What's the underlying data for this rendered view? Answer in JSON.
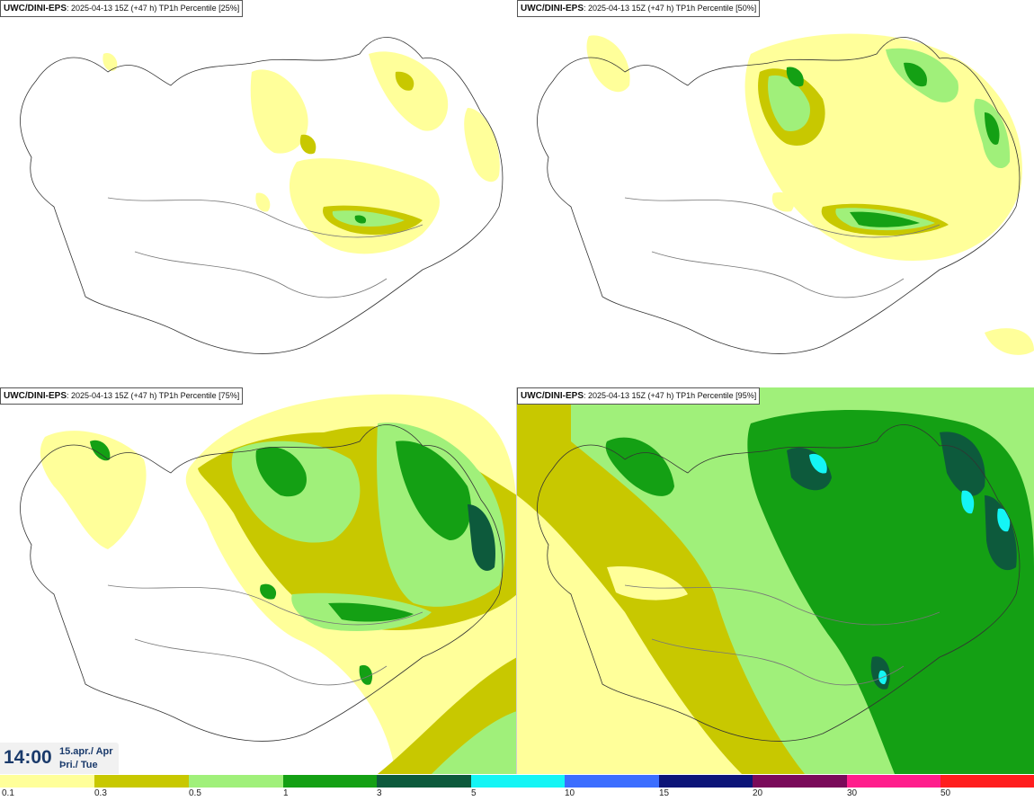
{
  "panels": [
    {
      "model": "UWC/DINI-EPS",
      "info": ": 2025-04-13 15Z (+47 h) TP1h Percentile [25%]"
    },
    {
      "model": "UWC/DINI-EPS",
      "info": ": 2025-04-13 15Z (+47 h) TP1h Percentile [50%]"
    },
    {
      "model": "UWC/DINI-EPS",
      "info": ": 2025-04-13 15Z (+47 h) TP1h Percentile [75%]"
    },
    {
      "model": "UWC/DINI-EPS",
      "info": ": 2025-04-13 15Z (+47 h) TP1h Percentile [95%]"
    }
  ],
  "valid_time": {
    "time": "14:00",
    "date_line1": "15.apr./ Apr",
    "date_line2": "Þri./ Tue"
  },
  "legend": {
    "labels": [
      "0.1",
      "0.3",
      "0.5",
      "1",
      "3",
      "5",
      "10",
      "15",
      "20",
      "30",
      "50"
    ],
    "colors": [
      "#ffff9a",
      "#c8c800",
      "#a0f07a",
      "#14a014",
      "#0d5a3c",
      "#14f5f5",
      "#3c6eff",
      "#0c1478",
      "#7a0a5a",
      "#ff1e8c",
      "#ff1e1e"
    ]
  }
}
